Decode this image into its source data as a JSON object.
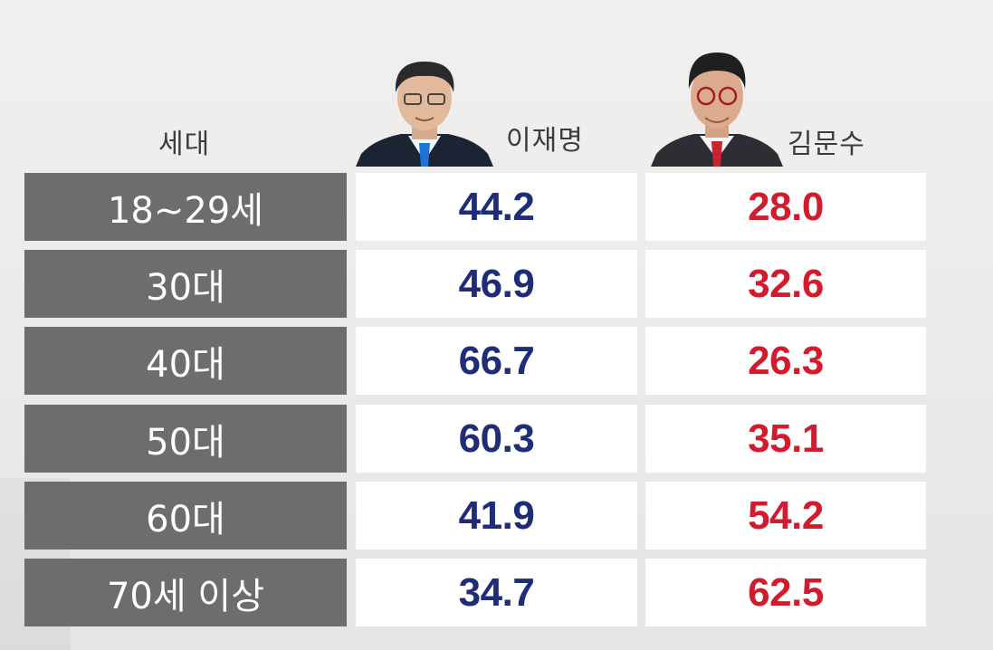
{
  "chart_data": {
    "type": "table",
    "columns": [
      "세대",
      "이재명",
      "김문수"
    ],
    "rows": [
      {
        "label": "18~29세",
        "values": [
          "44.2",
          "28.0"
        ]
      },
      {
        "label": "30대",
        "values": [
          "46.9",
          "32.6"
        ]
      },
      {
        "label": "40대",
        "values": [
          "66.7",
          "26.3"
        ]
      },
      {
        "label": "50대",
        "values": [
          "60.3",
          "35.1"
        ]
      },
      {
        "label": "60대",
        "values": [
          "41.9",
          "54.2"
        ]
      },
      {
        "label": "70세 이상",
        "values": [
          "34.7",
          "62.5"
        ]
      }
    ],
    "series_colors": [
      "#1f2d78",
      "#d21b2c"
    ]
  }
}
